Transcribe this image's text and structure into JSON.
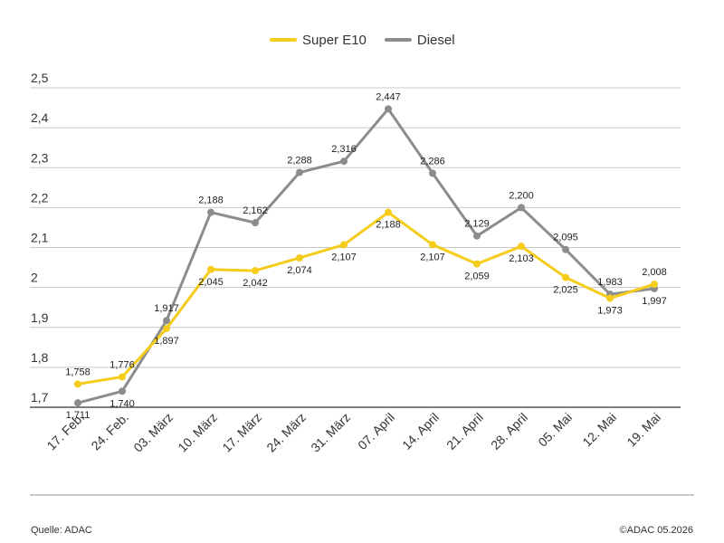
{
  "chart_data": {
    "type": "line",
    "categories": [
      "17. Feb.",
      "24. Feb.",
      "03. März",
      "10. März",
      "17. März",
      "24. März",
      "31. März",
      "07. April",
      "14. April",
      "21. April",
      "28. April",
      "05. Mai",
      "12. Mai",
      "19. Mai"
    ],
    "series": [
      {
        "name": "Super E10",
        "color": "#f5cc1a",
        "values": [
          1.758,
          1.776,
          1.897,
          2.045,
          2.042,
          2.074,
          2.107,
          2.188,
          2.107,
          2.059,
          2.103,
          2.025,
          1.973,
          2.008
        ],
        "labels": [
          "1,758",
          "1,776",
          "1,897",
          "2,045",
          "2,042",
          "2,074",
          "2,107",
          "2,188",
          "2,107",
          "2,059",
          "2,103",
          "2,025",
          "1,973",
          "2,008"
        ]
      },
      {
        "name": "Diesel",
        "color": "#8c8c8c",
        "values": [
          1.711,
          1.74,
          1.917,
          2.188,
          2.162,
          2.288,
          2.316,
          2.447,
          2.286,
          2.129,
          2.2,
          2.095,
          1.983,
          1.997
        ],
        "labels": [
          "1,711",
          "1,740",
          "1,917",
          "2,188",
          "2,162",
          "2,288",
          "2,316",
          "2,447",
          "2,286",
          "2,129",
          "2,200",
          "2,095",
          "1,983",
          "1,997"
        ]
      }
    ],
    "y_ticks": [
      1.7,
      1.8,
      1.9,
      2.0,
      2.1,
      2.2,
      2.3,
      2.4,
      2.5
    ],
    "y_tick_labels": [
      "1,7",
      "1,8",
      "1,9",
      "2",
      "2,1",
      "2,2",
      "2,3",
      "2,4",
      "2,5"
    ],
    "ylim": [
      1.7,
      2.5
    ],
    "grid": "horizontal",
    "legend_position": "top-center",
    "title": "",
    "xlabel": "",
    "ylabel": ""
  },
  "footer": {
    "source": "Quelle: ADAC",
    "copyright": "©ADAC 05.2026"
  }
}
